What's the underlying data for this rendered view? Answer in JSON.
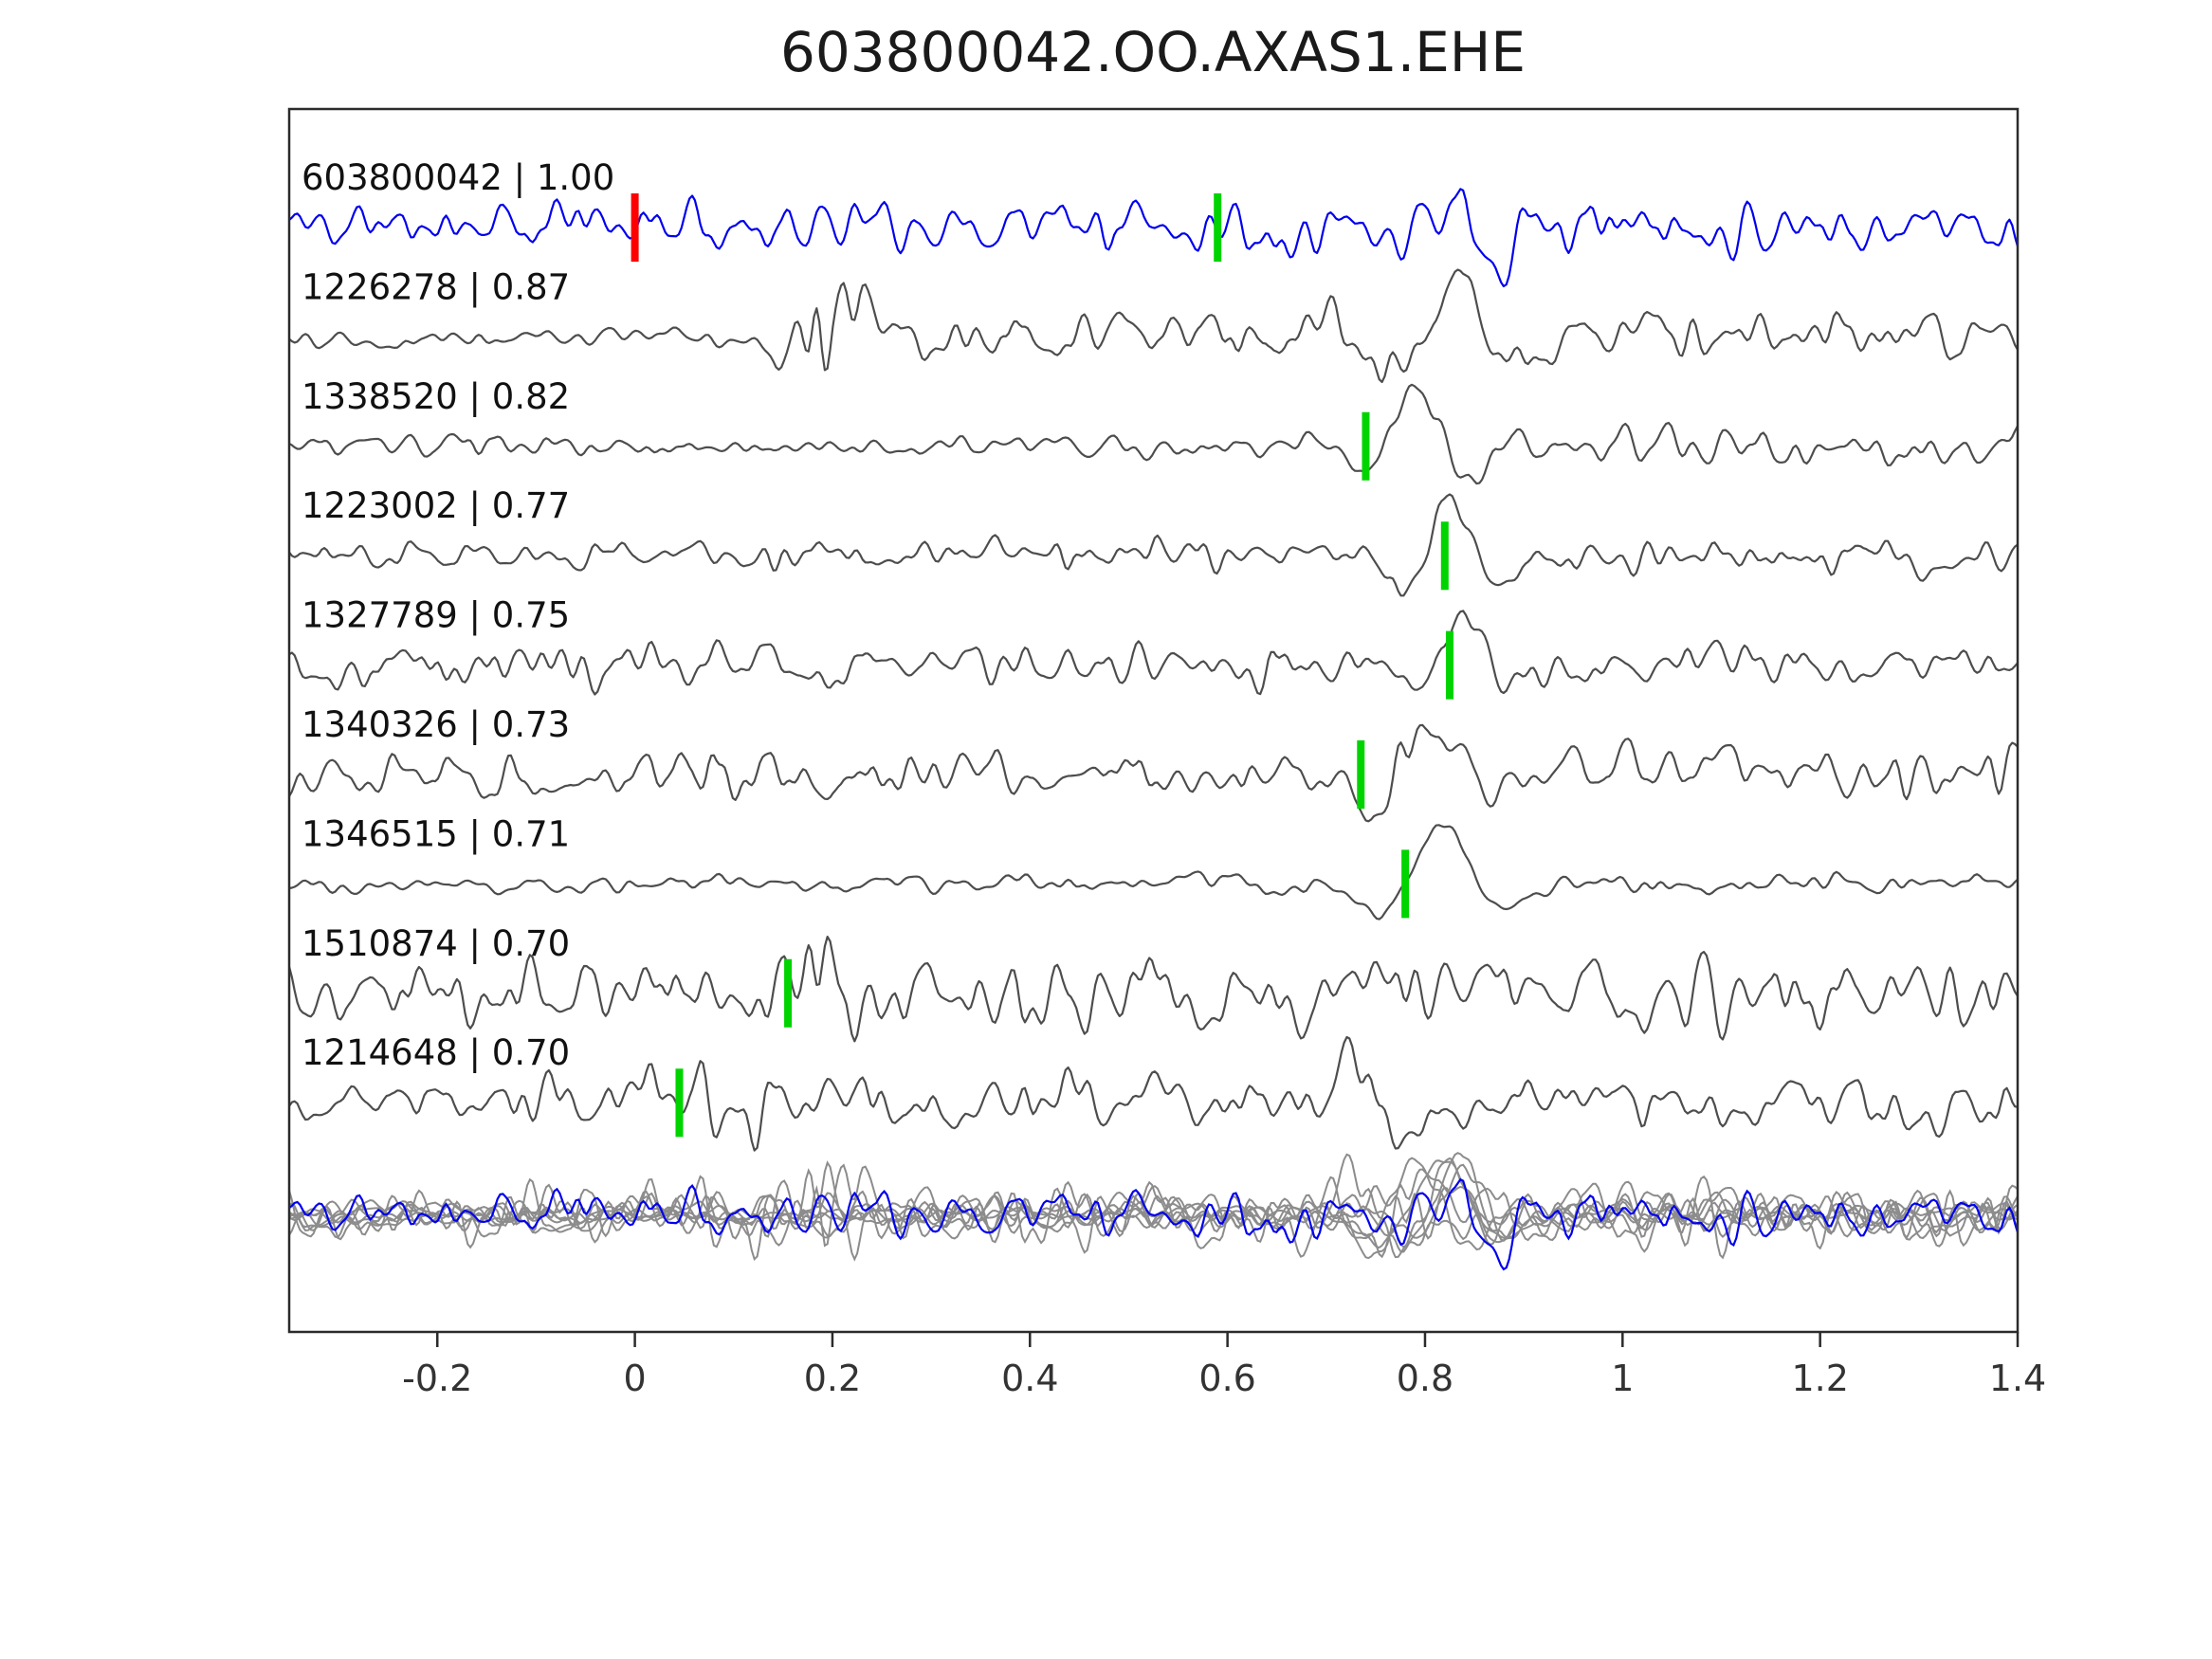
{
  "title": "603800042.OO.AXAS1.EHE",
  "colors": {
    "template_trace": "#0000ee",
    "match_trace": "#4d4d4d",
    "overlay_gray": "#8c8c8c",
    "pick_green": "#00d400",
    "pick_red": "#ff0000",
    "axis": "#2b2b2b",
    "background": "#ffffff"
  },
  "chart_data": {
    "type": "line",
    "title": "603800042.OO.AXAS1.EHE",
    "xlabel": "",
    "ylabel": "",
    "xlim": [
      -0.35,
      1.4
    ],
    "grid": false,
    "legend": "none",
    "x_ticks": [
      -0.2,
      0,
      0.2,
      0.4,
      0.6,
      0.8,
      1.0,
      1.2,
      1.4
    ],
    "x_tick_labels": [
      "-0.2",
      "0",
      "0.2",
      "0.4",
      "0.6",
      "0.8",
      "1",
      "1.2",
      "1.4"
    ],
    "traces": [
      {
        "id": "603800042",
        "score": "1.00",
        "label": "603800042 | 1.00",
        "color": "#0000ee",
        "seed": 11,
        "envelope": [
          [
            -0.35,
            1.0
          ],
          [
            0.7,
            1.0
          ],
          [
            0.8,
            1.3
          ],
          [
            0.9,
            1.3
          ],
          [
            1.0,
            1.0
          ],
          [
            1.4,
            1.0
          ]
        ],
        "pulses": [
          {
            "x": 0.82,
            "w": 0.04,
            "amp": 3.0
          }
        ],
        "picks": [
          {
            "x": 0.0,
            "color": "#ff0000"
          },
          {
            "x": 0.59,
            "color": "#00d400"
          }
        ]
      },
      {
        "id": "1226278",
        "score": "0.87",
        "label": "1226278 | 0.87",
        "color": "#4d4d4d",
        "seed": 22,
        "envelope": [
          [
            -0.35,
            0.4
          ],
          [
            0.12,
            0.4
          ],
          [
            0.16,
            2.2
          ],
          [
            0.22,
            2.2
          ],
          [
            0.3,
            1.1
          ],
          [
            1.4,
            1.0
          ]
        ],
        "pulses": [
          {
            "x": 0.84,
            "w": 0.05,
            "amp": 4.2
          }
        ],
        "picks": []
      },
      {
        "id": "1338520",
        "score": "0.82",
        "label": "1338520 | 0.82",
        "color": "#4d4d4d",
        "seed": 33,
        "envelope": [
          [
            -0.35,
            0.45
          ],
          [
            0.7,
            0.45
          ],
          [
            0.85,
            0.8
          ],
          [
            1.4,
            0.6
          ]
        ],
        "pulses": [
          {
            "x": 0.79,
            "w": 0.04,
            "amp": 4.6
          }
        ],
        "picks": [
          {
            "x": 0.74,
            "color": "#00d400"
          }
        ]
      },
      {
        "id": "1223002",
        "score": "0.77",
        "label": "1223002 | 0.77",
        "color": "#4d4d4d",
        "seed": 44,
        "envelope": [
          [
            -0.35,
            0.6
          ],
          [
            1.4,
            0.6
          ]
        ],
        "pulses": [
          {
            "x": 0.825,
            "w": 0.035,
            "amp": 4.8
          }
        ],
        "picks": [
          {
            "x": 0.82,
            "color": "#00d400"
          }
        ]
      },
      {
        "id": "1327789",
        "score": "0.75",
        "label": "1327789 | 0.75",
        "color": "#4d4d4d",
        "seed": 55,
        "envelope": [
          [
            -0.35,
            0.9
          ],
          [
            0.6,
            0.8
          ],
          [
            1.4,
            0.8
          ]
        ],
        "pulses": [
          {
            "x": 0.835,
            "w": 0.04,
            "amp": 4.4
          }
        ],
        "picks": [
          {
            "x": 0.825,
            "color": "#00d400"
          }
        ]
      },
      {
        "id": "1340326",
        "score": "0.73",
        "label": "1340326 | 0.73",
        "color": "#4d4d4d",
        "seed": 66,
        "envelope": [
          [
            -0.35,
            0.7
          ],
          [
            0.17,
            1.3
          ],
          [
            0.25,
            1.0
          ],
          [
            0.6,
            0.9
          ],
          [
            0.95,
            1.1
          ],
          [
            1.4,
            1.1
          ]
        ],
        "pulses": [
          {
            "x": 0.8,
            "w": 0.05,
            "amp": 4.2
          }
        ],
        "picks": [
          {
            "x": 0.735,
            "color": "#00d400"
          }
        ]
      },
      {
        "id": "1346515",
        "score": "0.71",
        "label": "1346515 | 0.71",
        "color": "#4d4d4d",
        "seed": 77,
        "envelope": [
          [
            -0.35,
            0.35
          ],
          [
            1.4,
            0.4
          ]
        ],
        "pulses": [
          {
            "x": 0.82,
            "w": 0.055,
            "amp": 4.4
          }
        ],
        "picks": [
          {
            "x": 0.78,
            "color": "#00d400"
          }
        ]
      },
      {
        "id": "1510874",
        "score": "0.70",
        "label": "1510874 | 0.70",
        "color": "#4d4d4d",
        "seed": 88,
        "envelope": [
          [
            -0.35,
            1.3
          ],
          [
            0.14,
            1.4
          ],
          [
            0.19,
            2.4
          ],
          [
            0.3,
            1.6
          ],
          [
            0.8,
            1.3
          ],
          [
            1.2,
            1.5
          ],
          [
            1.4,
            1.3
          ]
        ],
        "pulses": [],
        "picks": [
          {
            "x": 0.155,
            "color": "#00d400"
          }
        ]
      },
      {
        "id": "1214648",
        "score": "0.70",
        "label": "1214648 | 0.70",
        "color": "#4d4d4d",
        "seed": 99,
        "envelope": [
          [
            -0.35,
            0.9
          ],
          [
            0.05,
            1.4
          ],
          [
            0.12,
            1.6
          ],
          [
            0.2,
            1.1
          ],
          [
            0.45,
            1.3
          ],
          [
            0.6,
            1.1
          ],
          [
            1.4,
            1.0
          ]
        ],
        "pulses": [
          {
            "x": 0.72,
            "w": 0.045,
            "amp": 2.6
          },
          {
            "x": 0.9,
            "w": 0.05,
            "amp": 1.5
          }
        ],
        "picks": [
          {
            "x": 0.045,
            "color": "#00d400"
          }
        ]
      }
    ],
    "overlay": {
      "description": "all matched traces overlaid in gray with template trace in blue on top",
      "gray_color": "#8c8c8c",
      "blue_color": "#0000ee"
    }
  }
}
